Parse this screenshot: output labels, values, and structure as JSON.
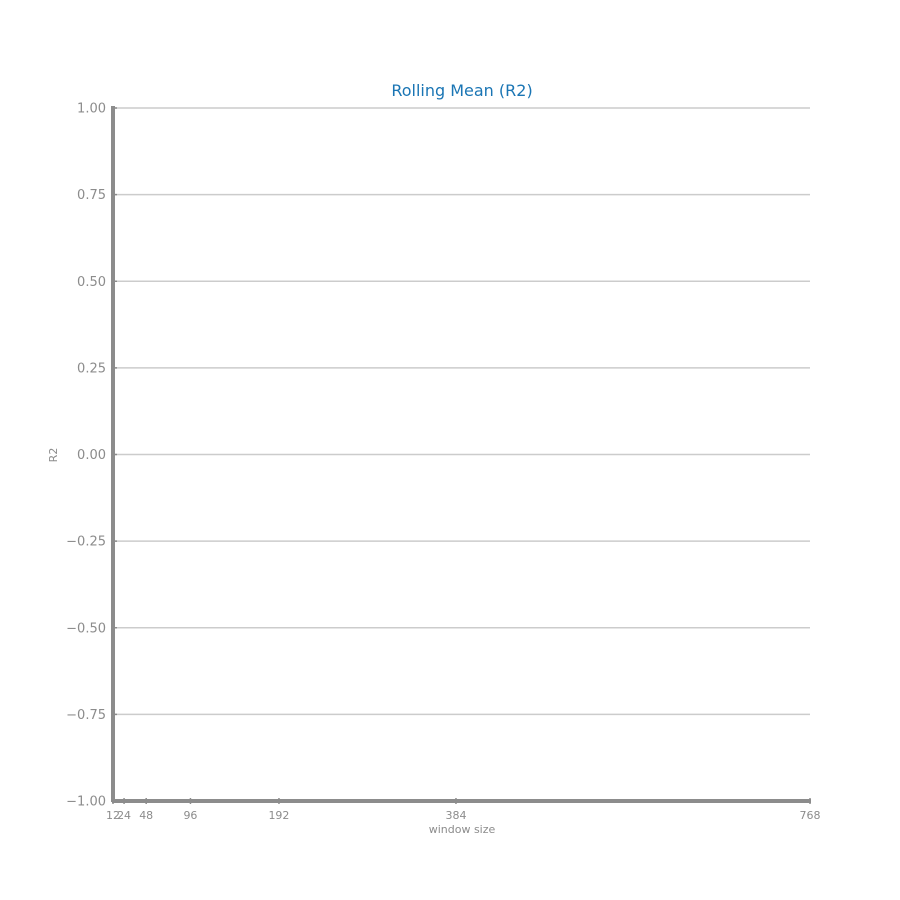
{
  "colors": {
    "title": "#1a75b4",
    "axis": "#8c8c8c",
    "grid": "#cccccc",
    "background": "#ffffff"
  },
  "chart_data": {
    "type": "line",
    "title": "Rolling Mean (R2)",
    "xlabel": "window size",
    "ylabel": "R2",
    "x_ticks": [
      12,
      24,
      48,
      96,
      192,
      384,
      768
    ],
    "x_tick_labels": [
      "12",
      "24",
      "48",
      "96",
      "192",
      "384",
      "768"
    ],
    "y_ticks": [
      1.0,
      0.75,
      0.5,
      0.25,
      0.0,
      -0.25,
      -0.5,
      -0.75,
      -1.0
    ],
    "y_tick_labels": [
      "1.00",
      "0.75",
      "0.50",
      "0.25",
      "0.00",
      "−0.25",
      "−0.50",
      "−0.75",
      "−1.00"
    ],
    "xlim": [
      12,
      768
    ],
    "ylim": [
      -1.0,
      1.0
    ],
    "grid": true,
    "series": []
  }
}
